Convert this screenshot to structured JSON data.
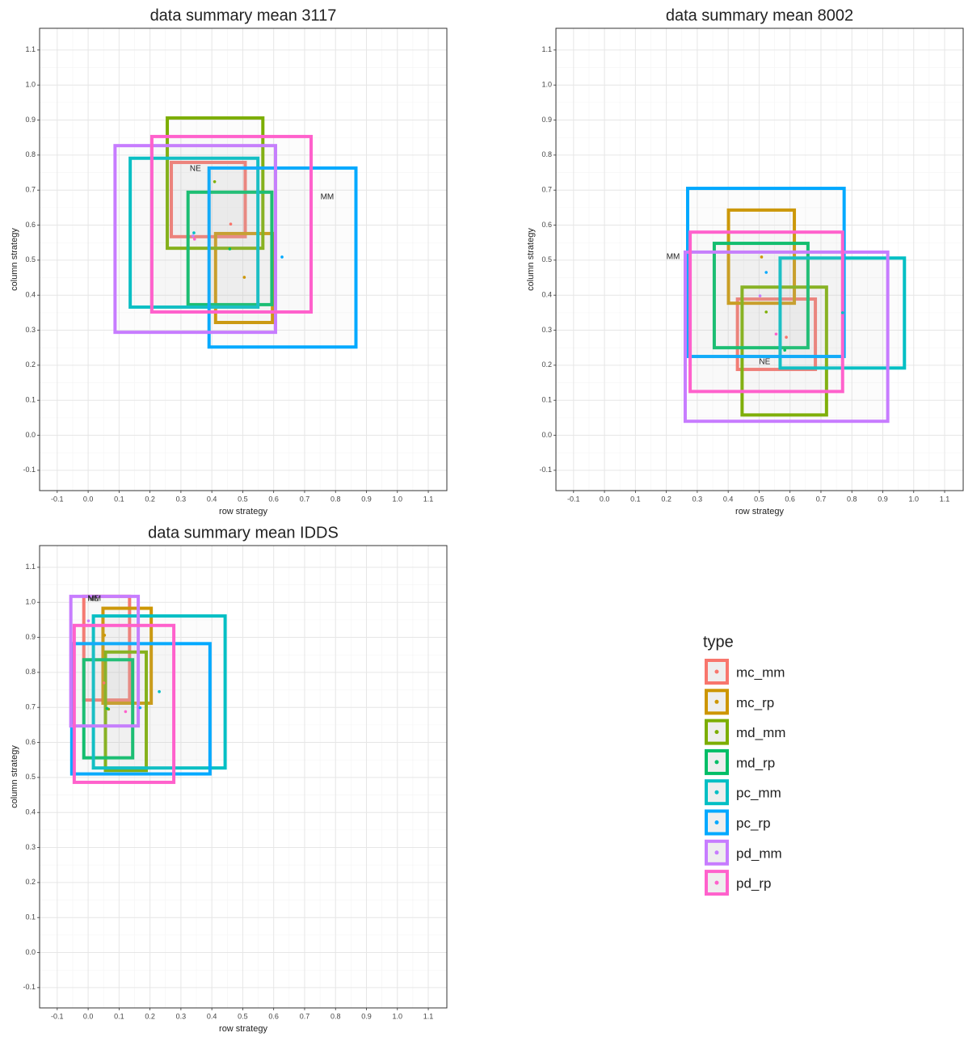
{
  "chart_data": [
    {
      "type": "rect",
      "title": "data summary mean 3117",
      "xlabel": "row strategy",
      "ylabel": "column strategy",
      "xlim": [
        -0.157,
        1.16
      ],
      "ylim": [
        -0.158,
        1.162
      ],
      "xticks": [
        -0.1,
        {
          "value": 0,
          "label": "0.0"
        },
        0.1,
        0.2,
        0.3,
        0.4,
        0.5,
        0.6,
        0.7,
        0.8,
        0.9,
        {
          "value": 1,
          "label": "1.0"
        },
        1.1
      ],
      "yticks": [
        -0.1,
        {
          "value": 0,
          "label": "0.0"
        },
        0.1,
        0.2,
        0.3,
        0.4,
        0.5,
        0.6,
        0.7,
        0.8,
        0.9,
        {
          "value": 1,
          "label": "1.0"
        },
        1.1
      ],
      "grid": true,
      "boxes": [
        {
          "xmin": 0.269,
          "xmax": 0.508,
          "ymin": 0.567,
          "ymax": 0.779,
          "x": 0.461,
          "y": 0.603
        },
        {
          "xmin": 0.412,
          "xmax": 0.596,
          "ymin": 0.322,
          "ymax": 0.576,
          "x": 0.505,
          "y": 0.451
        },
        {
          "xmin": 0.256,
          "xmax": 0.565,
          "ymin": 0.534,
          "ymax": 0.906,
          "x": 0.409,
          "y": 0.724
        },
        {
          "xmin": 0.323,
          "xmax": 0.594,
          "ymin": 0.373,
          "ymax": 0.694,
          "x": 0.458,
          "y": 0.532
        },
        {
          "xmin": 0.136,
          "xmax": 0.549,
          "ymin": 0.366,
          "ymax": 0.791,
          "x": 0.342,
          "y": 0.578
        },
        {
          "xmin": 0.391,
          "xmax": 0.866,
          "ymin": 0.252,
          "ymax": 0.763,
          "x": 0.627,
          "y": 0.509
        },
        {
          "xmin": 0.087,
          "xmax": 0.606,
          "ymin": 0.294,
          "ymax": 0.827,
          "x": 0.339,
          "y": 0.569
        },
        {
          "xmin": 0.206,
          "xmax": 0.721,
          "ymin": 0.352,
          "ymax": 0.853,
          "x": 0.344,
          "y": 0.56
        }
      ],
      "annotations": [
        {
          "text": "NE",
          "x": 0.347,
          "y": 0.761
        },
        {
          "text": "MM",
          "x": 0.773,
          "y": 0.68
        }
      ]
    },
    {
      "type": "rect",
      "title": "data summary mean 8002",
      "xlabel": "row strategy",
      "ylabel": "column strategy",
      "xlim": [
        -0.157,
        1.16
      ],
      "ylim": [
        -0.158,
        1.162
      ],
      "xticks": [
        -0.1,
        {
          "value": 0,
          "label": "0.0"
        },
        0.1,
        0.2,
        0.3,
        0.4,
        0.5,
        0.6,
        0.7,
        0.8,
        0.9,
        {
          "value": 1,
          "label": "1.0"
        },
        1.1
      ],
      "yticks": [
        -0.1,
        {
          "value": 0,
          "label": "0.0"
        },
        0.1,
        0.2,
        0.3,
        0.4,
        0.5,
        0.6,
        0.7,
        0.8,
        0.9,
        {
          "value": 1,
          "label": "1.0"
        },
        1.1
      ],
      "grid": true,
      "boxes": [
        {
          "xmin": 0.43,
          "xmax": 0.682,
          "ymin": 0.188,
          "ymax": 0.389,
          "x": 0.588,
          "y": 0.28
        },
        {
          "xmin": 0.401,
          "xmax": 0.614,
          "ymin": 0.377,
          "ymax": 0.643,
          "x": 0.508,
          "y": 0.509
        },
        {
          "xmin": 0.445,
          "xmax": 0.718,
          "ymin": 0.058,
          "ymax": 0.423,
          "x": 0.523,
          "y": 0.352
        },
        {
          "xmin": 0.355,
          "xmax": 0.658,
          "ymin": 0.25,
          "ymax": 0.548,
          "x": 0.583,
          "y": 0.243
        },
        {
          "xmin": 0.568,
          "xmax": 0.97,
          "ymin": 0.192,
          "ymax": 0.506,
          "x": 0.77,
          "y": 0.35
        },
        {
          "xmin": 0.269,
          "xmax": 0.775,
          "ymin": 0.225,
          "ymax": 0.705,
          "x": 0.523,
          "y": 0.465
        },
        {
          "xmin": 0.261,
          "xmax": 0.916,
          "ymin": 0.04,
          "ymax": 0.523,
          "x": 0.503,
          "y": 0.398
        },
        {
          "xmin": 0.277,
          "xmax": 0.77,
          "ymin": 0.125,
          "ymax": 0.58,
          "x": 0.555,
          "y": 0.289
        }
      ],
      "annotations": [
        {
          "text": "MM",
          "x": 0.222,
          "y": 0.509
        },
        {
          "text": "NE",
          "x": 0.518,
          "y": 0.209
        }
      ]
    },
    {
      "type": "rect",
      "title": "data summary mean IDDS",
      "xlabel": "row strategy",
      "ylabel": "column strategy",
      "xlim": [
        -0.157,
        1.16
      ],
      "ylim": [
        -0.158,
        1.162
      ],
      "xticks": [
        -0.1,
        {
          "value": 0,
          "label": "0.0"
        },
        0.1,
        0.2,
        0.3,
        0.4,
        0.5,
        0.6,
        0.7,
        0.8,
        0.9,
        {
          "value": 1,
          "label": "1.0"
        },
        1.1
      ],
      "yticks": [
        -0.1,
        {
          "value": 0,
          "label": "0.0"
        },
        0.1,
        0.2,
        0.3,
        0.4,
        0.5,
        0.6,
        0.7,
        0.8,
        0.9,
        {
          "value": 1,
          "label": "1.0"
        },
        1.1
      ],
      "grid": true,
      "boxes": [
        {
          "xmin": -0.014,
          "xmax": 0.134,
          "ymin": 0.721,
          "ymax": 1.017,
          "x": 0.051,
          "y": 0.77
        },
        {
          "xmin": 0.048,
          "xmax": 0.204,
          "ymin": 0.712,
          "ymax": 0.983,
          "x": 0.053,
          "y": 0.906
        },
        {
          "xmin": 0.056,
          "xmax": 0.188,
          "ymin": 0.52,
          "ymax": 0.858,
          "x": 0.066,
          "y": 0.695
        },
        {
          "xmin": -0.014,
          "xmax": 0.144,
          "ymin": 0.556,
          "ymax": 0.836,
          "x": 0.061,
          "y": 0.697
        },
        {
          "xmin": 0.017,
          "xmax": 0.443,
          "ymin": 0.527,
          "ymax": 0.961,
          "x": 0.23,
          "y": 0.745
        },
        {
          "xmin": -0.053,
          "xmax": 0.394,
          "ymin": 0.51,
          "ymax": 0.882,
          "x": 0.168,
          "y": 0.699
        },
        {
          "xmin": -0.056,
          "xmax": 0.162,
          "ymin": 0.647,
          "ymax": 1.017,
          "x": 0.001,
          "y": 0.947
        },
        {
          "xmin": -0.045,
          "xmax": 0.277,
          "ymin": 0.486,
          "ymax": 0.934,
          "x": 0.121,
          "y": 0.688
        }
      ],
      "annotations": [
        {
          "text": "NE",
          "x": 0.017,
          "y": 1.01
        },
        {
          "text": "MM",
          "x": 0.02,
          "y": 1.01
        }
      ]
    }
  ],
  "legend": {
    "title": "type",
    "entries": [
      {
        "name": "mc_mm",
        "color": "#F8766D"
      },
      {
        "name": "mc_rp",
        "color": "#CD9600"
      },
      {
        "name": "md_mm",
        "color": "#7CAE00"
      },
      {
        "name": "md_rp",
        "color": "#00BE67"
      },
      {
        "name": "pc_mm",
        "color": "#00BFC4"
      },
      {
        "name": "pc_rp",
        "color": "#00A9FF"
      },
      {
        "name": "pd_mm",
        "color": "#C77CFF"
      },
      {
        "name": "pd_rp",
        "color": "#FF61CC"
      }
    ]
  }
}
